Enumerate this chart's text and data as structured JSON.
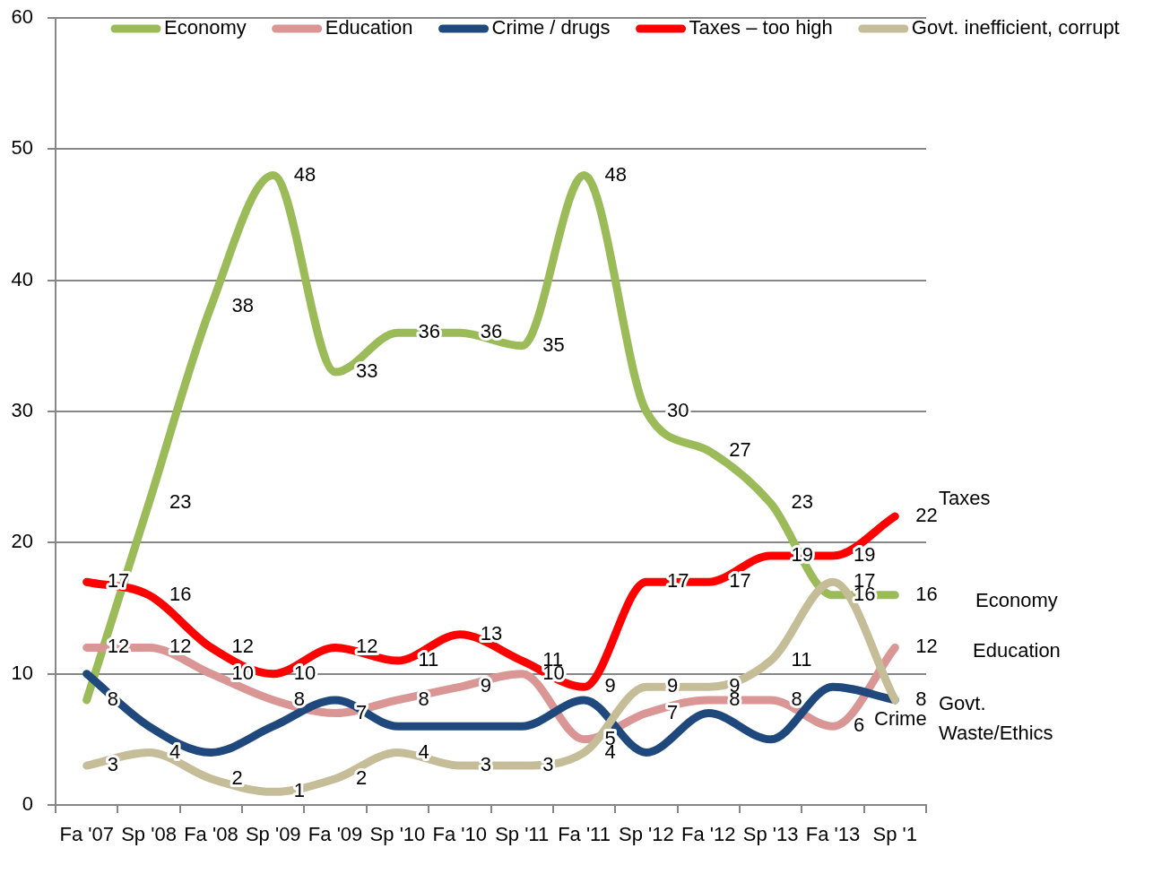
{
  "chart_data": {
    "type": "line",
    "categories": [
      "Fa '07",
      "Sp '08",
      "Fa '08",
      "Sp '09",
      "Fa '09",
      "Sp '10",
      "Fa '10",
      "Sp '11",
      "Fa '11",
      "Sp '12",
      "Fa '12",
      "Sp '13",
      "Fa '13",
      "Sp '1"
    ],
    "series": [
      {
        "name": "Economy",
        "color": "#9bbb59",
        "values": [
          8,
          23,
          38,
          48,
          33,
          36,
          36,
          35,
          48,
          30,
          27,
          23,
          16,
          16
        ],
        "value_labels": [
          "8",
          "23",
          "38",
          "48",
          "33",
          "36",
          "36",
          "35",
          "48",
          "30",
          "27",
          "23",
          "16",
          "16"
        ]
      },
      {
        "name": "Education",
        "color": "#d99694",
        "values": [
          12,
          12,
          10,
          8,
          7,
          8,
          9,
          10,
          5,
          7,
          8,
          8,
          6,
          12
        ],
        "value_labels": [
          "12",
          "12",
          "10",
          "8",
          "7",
          "8",
          "9",
          "10",
          "5",
          "7",
          "8",
          "8",
          "6",
          "12"
        ]
      },
      {
        "name": "Crime / drugs",
        "color": "#1f497d",
        "values": [
          10,
          6,
          4,
          6,
          8,
          6,
          6,
          6,
          8,
          4,
          7,
          5,
          9,
          8
        ]
      },
      {
        "name": "Taxes – too high",
        "color": "#ff0000",
        "values": [
          17,
          16,
          12,
          10,
          12,
          11,
          13,
          11,
          9,
          17,
          17,
          19,
          19,
          22
        ],
        "value_labels": [
          "17",
          "16",
          "12",
          "10",
          "12",
          "11",
          "13",
          "11",
          "9",
          "17",
          "17",
          "19",
          "19",
          "22"
        ]
      },
      {
        "name": "Govt. inefficient, corrupt",
        "color": "#c4bd97",
        "values": [
          3,
          4,
          2,
          1,
          2,
          4,
          3,
          3,
          4,
          9,
          9,
          11,
          17,
          8
        ],
        "value_labels": [
          "3",
          "4",
          "2",
          "1",
          "2",
          "4",
          "3",
          "3",
          "4",
          "9",
          "9",
          "11",
          "17",
          "8"
        ]
      }
    ],
    "ylim": [
      0,
      60
    ],
    "yticks": [
      0,
      10,
      20,
      30,
      40,
      50,
      60
    ],
    "grid": "y",
    "legend": "top",
    "marker": "none",
    "line_style": "solid",
    "annotations": [
      "Taxes",
      "Economy",
      "Education",
      "Govt.\nWaste/Ethics",
      "Crime"
    ]
  }
}
